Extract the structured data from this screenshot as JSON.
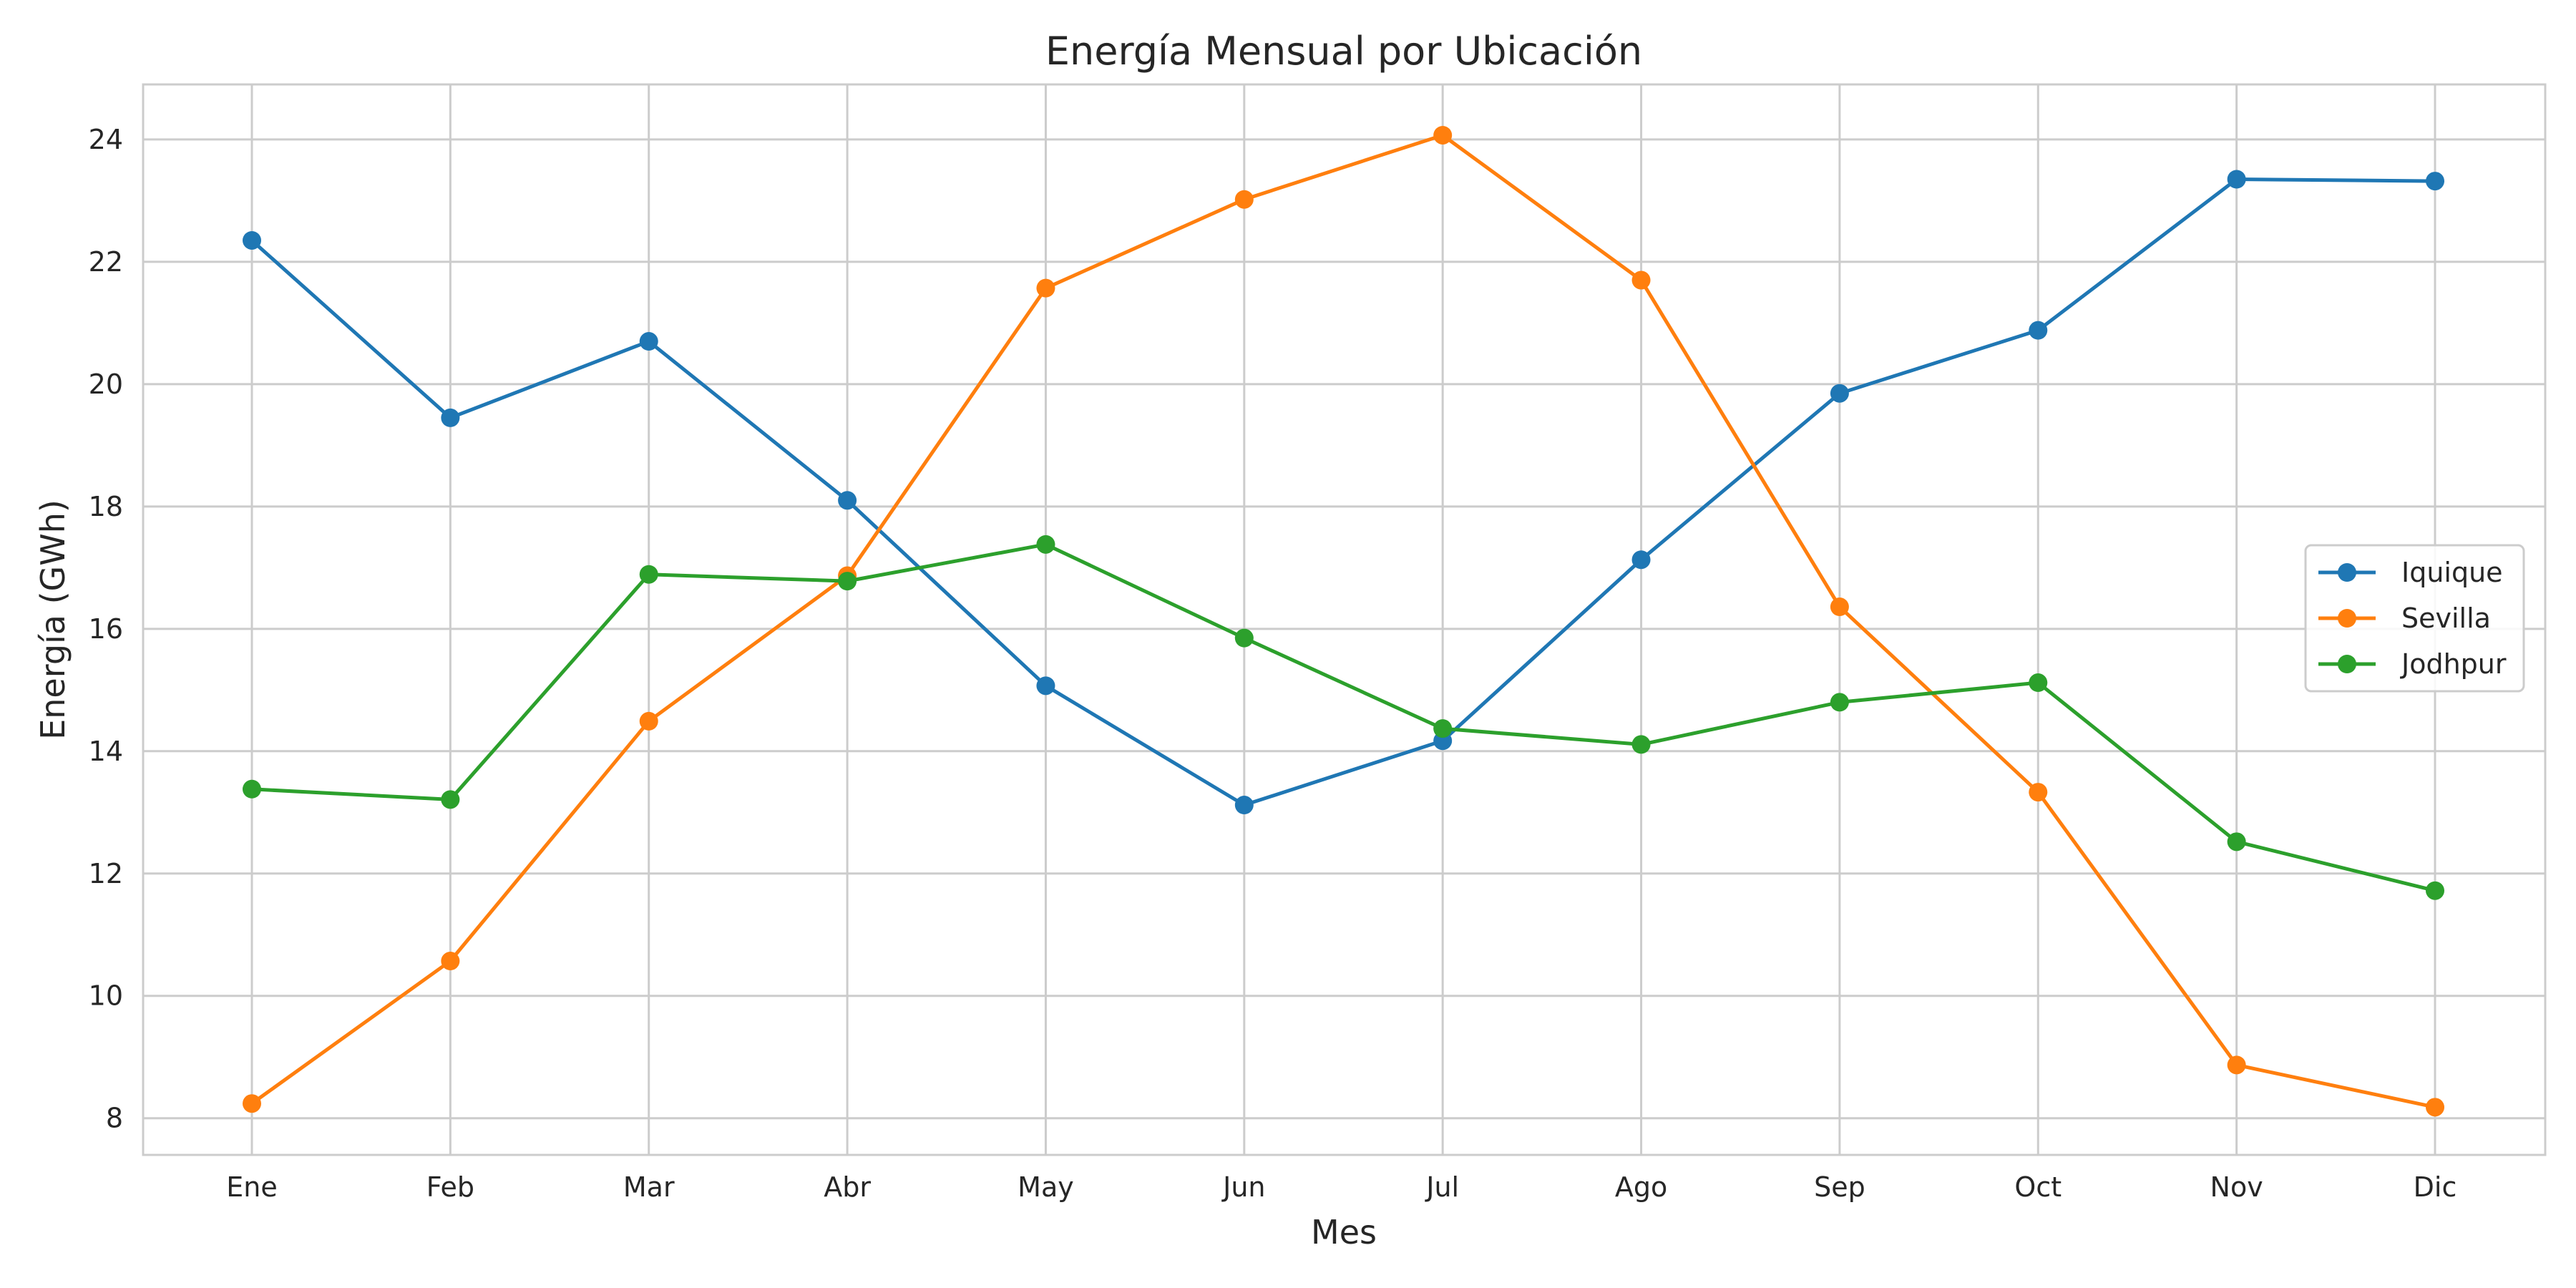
{
  "chart_data": {
    "type": "line",
    "title": "Energía Mensual por Ubicación",
    "xlabel": "Mes",
    "ylabel": "Energía (GWh)",
    "categories": [
      "Ene",
      "Feb",
      "Mar",
      "Abr",
      "May",
      "Jun",
      "Jul",
      "Ago",
      "Sep",
      "Oct",
      "Nov",
      "Dic"
    ],
    "ylim": [
      7.4,
      24.9
    ],
    "yticks": [
      8,
      10,
      12,
      14,
      16,
      18,
      20,
      22,
      24
    ],
    "grid": true,
    "legend_position": "center-right",
    "series": [
      {
        "name": "Iquique",
        "color": "#1f77b4",
        "values": [
          22.35,
          19.45,
          20.7,
          18.1,
          15.07,
          13.12,
          14.17,
          17.13,
          19.85,
          20.88,
          23.35,
          23.32
        ]
      },
      {
        "name": "Sevilla",
        "color": "#ff7f0e",
        "values": [
          8.24,
          10.57,
          14.49,
          16.87,
          21.57,
          23.02,
          24.07,
          21.7,
          16.36,
          13.33,
          8.87,
          8.18
        ]
      },
      {
        "name": "Jodhpur",
        "color": "#2ca02c",
        "values": [
          13.38,
          13.21,
          16.89,
          16.78,
          17.38,
          15.85,
          14.37,
          14.11,
          14.8,
          15.12,
          12.52,
          11.72
        ]
      }
    ]
  }
}
